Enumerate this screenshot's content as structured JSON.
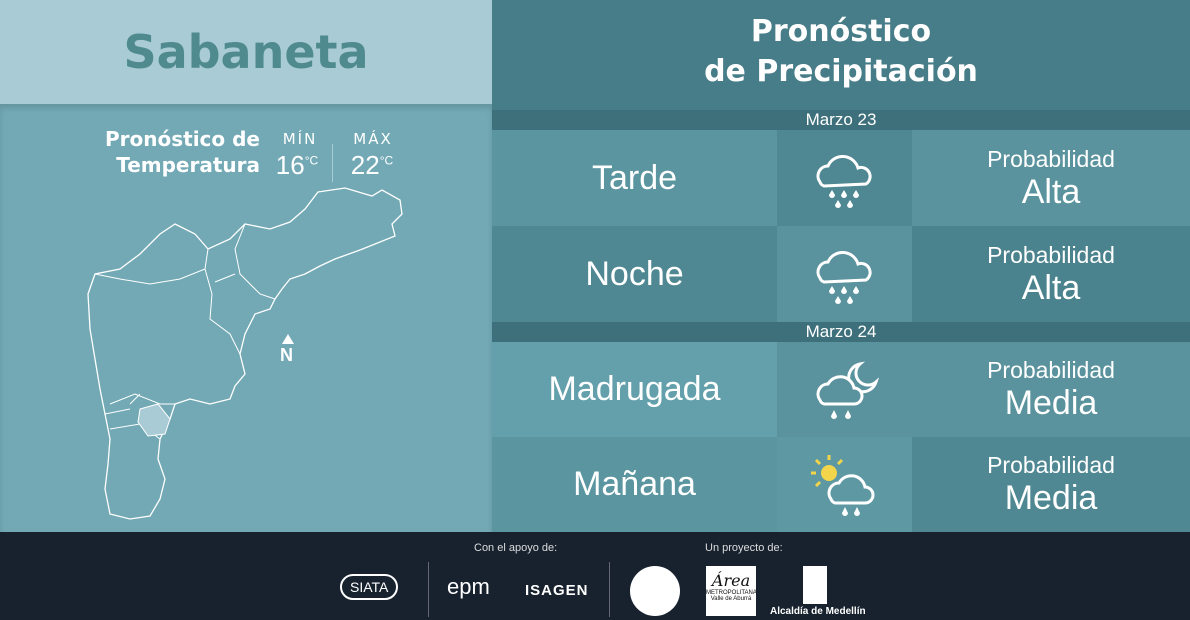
{
  "location": "Sabaneta",
  "temperature": {
    "title_line1": "Pronóstico de",
    "title_line2": "Temperatura",
    "min_label": "MÍN",
    "min_value": "16",
    "max_label": "MÁX",
    "max_value": "22",
    "unit": "°C"
  },
  "map": {
    "north_label": "N"
  },
  "precipitation": {
    "title_line1": "Pronóstico",
    "title_line2": "de Precipitación",
    "days": [
      {
        "date": "Marzo 23",
        "periods": [
          {
            "name": "Tarde",
            "icon": "cloud-heavy-rain-icon",
            "prob_label": "Probabilidad",
            "level": "Alta"
          },
          {
            "name": "Noche",
            "icon": "cloud-heavy-rain-icon",
            "prob_label": "Probabilidad",
            "level": "Alta"
          }
        ]
      },
      {
        "date": "Marzo 24",
        "periods": [
          {
            "name": "Madrugada",
            "icon": "moon-cloud-rain-icon",
            "prob_label": "Probabilidad",
            "level": "Media"
          },
          {
            "name": "Mañana",
            "icon": "sun-cloud-rain-icon",
            "prob_label": "Probabilidad",
            "level": "Media"
          }
        ]
      }
    ]
  },
  "footer": {
    "support_label": "Con el apoyo de:",
    "project_label": "Un proyecto de:",
    "logos": {
      "siata": "SIATA",
      "epm": "epm",
      "isagen": "ISAGEN",
      "area_1": "Área",
      "area_2": "METROPOLITANA",
      "area_3": "Valle de Aburrá",
      "alcaldia": "Alcaldía de Medellín"
    }
  },
  "colors": {
    "header_light": "#a9cbd6",
    "panel": "#72a9b5",
    "header_dark": "#477d88",
    "footer": "#17222e",
    "sun": "#f2d54a"
  }
}
